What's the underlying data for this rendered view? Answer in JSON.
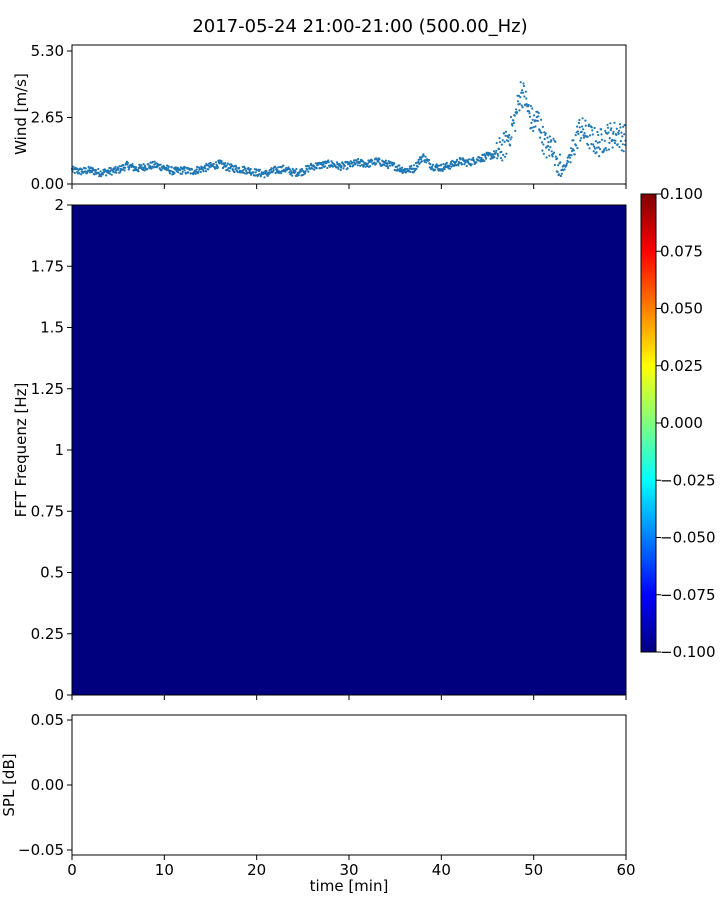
{
  "title": "2017-05-24 21:00-21:00 (500.00_Hz)",
  "chart_data": [
    {
      "type": "scatter",
      "panel": "wind",
      "ylabel": "Wind [m/s]",
      "ylim": [
        0,
        5.3
      ],
      "yticks": [
        "0.00",
        "2.65",
        "5.30"
      ],
      "xlim": [
        0,
        60
      ],
      "marker_color": "#1f77b4",
      "series_shape": [
        [
          0,
          0.55
        ],
        [
          1,
          0.5
        ],
        [
          2,
          0.55
        ],
        [
          3,
          0.45
        ],
        [
          4,
          0.5
        ],
        [
          5,
          0.55
        ],
        [
          6,
          0.75
        ],
        [
          7,
          0.6
        ],
        [
          8,
          0.7
        ],
        [
          9,
          0.75
        ],
        [
          10,
          0.65
        ],
        [
          11,
          0.5
        ],
        [
          12,
          0.55
        ],
        [
          13,
          0.5
        ],
        [
          14,
          0.6
        ],
        [
          15,
          0.7
        ],
        [
          16,
          0.8
        ],
        [
          17,
          0.65
        ],
        [
          18,
          0.6
        ],
        [
          19,
          0.55
        ],
        [
          20,
          0.45
        ],
        [
          21,
          0.4
        ],
        [
          22,
          0.55
        ],
        [
          23,
          0.6
        ],
        [
          24,
          0.45
        ],
        [
          25,
          0.5
        ],
        [
          26,
          0.7
        ],
        [
          27,
          0.75
        ],
        [
          28,
          0.8
        ],
        [
          29,
          0.7
        ],
        [
          30,
          0.75
        ],
        [
          31,
          0.85
        ],
        [
          32,
          0.8
        ],
        [
          33,
          0.9
        ],
        [
          34,
          0.8
        ],
        [
          35,
          0.7
        ],
        [
          36,
          0.55
        ],
        [
          37,
          0.6
        ],
        [
          38,
          1.1
        ],
        [
          39,
          0.7
        ],
        [
          40,
          0.65
        ],
        [
          41,
          0.75
        ],
        [
          42,
          0.9
        ],
        [
          43,
          0.85
        ],
        [
          44,
          1.0
        ],
        [
          45,
          1.1
        ],
        [
          46,
          1.2
        ],
        [
          47,
          1.6
        ],
        [
          48,
          2.6
        ],
        [
          48.6,
          3.7
        ],
        [
          49,
          3.5
        ],
        [
          49.5,
          2.8
        ],
        [
          50,
          2.4
        ],
        [
          50.5,
          2.6
        ],
        [
          51,
          1.8
        ],
        [
          51.5,
          1.4
        ],
        [
          52,
          1.6
        ],
        [
          53,
          0.5
        ],
        [
          54,
          1.1
        ],
        [
          55,
          2.2
        ],
        [
          56,
          1.9
        ],
        [
          57,
          1.6
        ],
        [
          58,
          1.9
        ],
        [
          59,
          2.0
        ],
        [
          60,
          1.8
        ]
      ]
    },
    {
      "type": "heatmap",
      "panel": "spectrogram",
      "ylabel": "FFT Frequenz [Hz]",
      "ylim": [
        0,
        2
      ],
      "yticks": [
        "0",
        "0.25",
        "0.5",
        "0.75",
        "1",
        "1.25",
        "1.5",
        "1.75",
        "2"
      ],
      "xlim": [
        0,
        60
      ],
      "fill_color": "#00007f",
      "colorbar": {
        "range": [
          -0.1,
          0.1
        ],
        "ticks": [
          "0.100",
          "0.075",
          "0.050",
          "0.025",
          "0.000",
          "−0.025",
          "−0.050",
          "−0.075",
          "−0.100"
        ],
        "colors": [
          "#7f0000",
          "#ff0000",
          "#ff7f00",
          "#ffff00",
          "#7fff7f",
          "#00ffff",
          "#007fff",
          "#0000ff",
          "#00007f"
        ]
      }
    },
    {
      "type": "line",
      "panel": "spl",
      "ylabel": "SPL [dB]",
      "ylim": [
        -0.055,
        0.055
      ],
      "yticks": [
        "0.05",
        "0.00",
        "−0.05"
      ],
      "xlabel": "time [min]",
      "xlim": [
        0,
        60
      ],
      "xticks": [
        "0",
        "10",
        "20",
        "30",
        "40",
        "50",
        "60"
      ]
    }
  ]
}
